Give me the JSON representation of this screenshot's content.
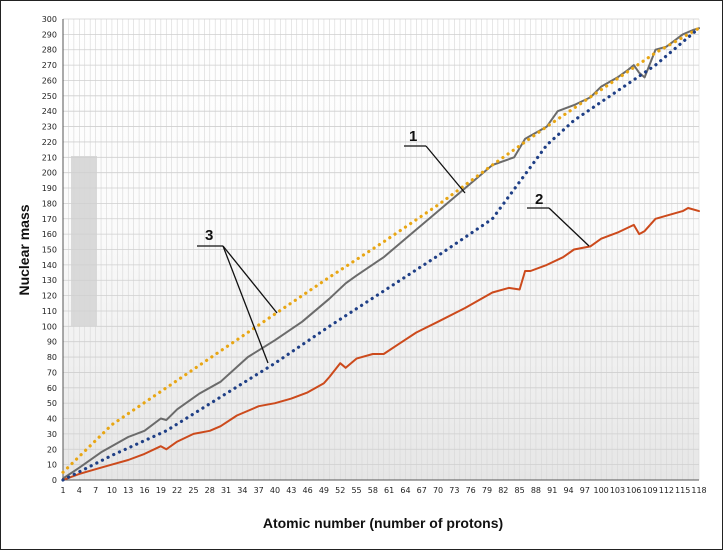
{
  "chart_data": {
    "type": "line",
    "title": "",
    "xlabel": "Atomic number (number of protons)",
    "ylabel": "Nuclear mass",
    "xlim": [
      1,
      118
    ],
    "ylim": [
      0,
      300
    ],
    "x_ticks": [
      1,
      4,
      7,
      10,
      13,
      16,
      19,
      22,
      25,
      28,
      31,
      34,
      37,
      40,
      43,
      46,
      49,
      52,
      55,
      58,
      61,
      64,
      67,
      70,
      73,
      76,
      79,
      82,
      85,
      88,
      91,
      94,
      97,
      100,
      103,
      106,
      109,
      112,
      115,
      118
    ],
    "y_ticks": [
      0,
      10,
      20,
      30,
      40,
      50,
      60,
      70,
      80,
      90,
      100,
      110,
      120,
      130,
      140,
      150,
      160,
      170,
      180,
      190,
      200,
      210,
      220,
      230,
      240,
      250,
      260,
      270,
      280,
      290,
      300
    ],
    "grid": true,
    "series": [
      {
        "name": "1",
        "style": "solid",
        "color": "#6b6b6b",
        "x": [
          1,
          4,
          8,
          13,
          16,
          19,
          20,
          22,
          26,
          30,
          35,
          40,
          45,
          50,
          53,
          55,
          60,
          65,
          70,
          75,
          80,
          84,
          86,
          87,
          90,
          92,
          95,
          98,
          100,
          103,
          105,
          106,
          107,
          108,
          110,
          112,
          115,
          117,
          118
        ],
        "y": [
          1,
          8,
          18,
          28,
          32,
          40,
          39,
          46,
          56,
          64,
          80,
          91,
          103,
          118,
          128,
          133,
          145,
          160,
          175,
          190,
          205,
          210,
          222,
          224,
          230,
          240,
          244,
          249,
          256,
          262,
          267,
          270,
          265,
          262,
          280,
          282,
          290,
          293,
          294
        ]
      },
      {
        "name": "2",
        "style": "solid",
        "color": "#cc4a1c",
        "x": [
          1,
          4,
          7,
          10,
          13,
          16,
          19,
          20,
          22,
          25,
          28,
          30,
          33,
          37,
          40,
          43,
          46,
          49,
          50,
          52,
          53,
          55,
          58,
          60,
          63,
          66,
          70,
          75,
          80,
          83,
          85,
          86,
          87,
          90,
          93,
          95,
          98,
          100,
          103,
          106,
          107,
          108,
          110,
          112,
          115,
          116,
          118
        ],
        "y": [
          0,
          4,
          7,
          10,
          13,
          17,
          22,
          20,
          25,
          30,
          32,
          35,
          42,
          48,
          50,
          53,
          57,
          63,
          67,
          76,
          73,
          79,
          82,
          82,
          89,
          96,
          103,
          112,
          122,
          125,
          124,
          136,
          136,
          140,
          145,
          150,
          152,
          157,
          161,
          166,
          160,
          162,
          170,
          172,
          175,
          177,
          175
        ]
      },
      {
        "name": "3 (upper)",
        "style": "dotted",
        "color": "#e8a614",
        "x": [
          1,
          10,
          20,
          30,
          40,
          50,
          60,
          70,
          80,
          90,
          100,
          110,
          118
        ],
        "y": [
          5,
          36,
          60,
          84,
          108,
          132,
          155,
          179,
          205,
          230,
          254,
          278,
          294
        ]
      },
      {
        "name": "3 (lower)",
        "style": "dotted",
        "color": "#1f3f86",
        "x": [
          1,
          10,
          20,
          30,
          40,
          50,
          60,
          70,
          80,
          85,
          90,
          95,
          100,
          110,
          118
        ],
        "y": [
          0,
          16,
          32,
          54,
          76,
          100,
          123,
          146,
          170,
          194,
          218,
          234,
          246,
          270,
          294
        ]
      }
    ],
    "annotations": [
      {
        "label": "1",
        "points_to": "series 1"
      },
      {
        "label": "2",
        "points_to": "series 2"
      },
      {
        "label": "3",
        "points_to": "dotted series"
      }
    ]
  }
}
